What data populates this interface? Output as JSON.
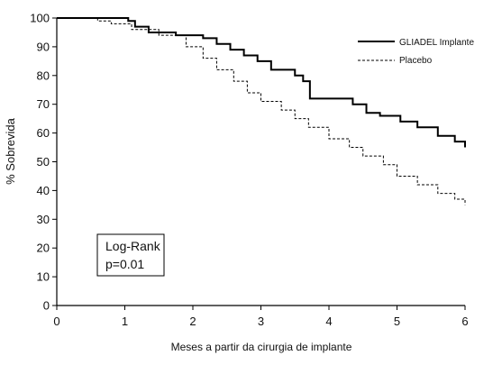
{
  "chart_data": {
    "type": "line",
    "ylabel": "% Sobrevida",
    "xlabel": "Meses a partir da cirurgia de implante",
    "xlim": [
      0,
      6
    ],
    "ylim": [
      0,
      100
    ],
    "xticks": [
      0,
      1,
      2,
      3,
      4,
      5,
      6
    ],
    "yticks": [
      0,
      10,
      20,
      30,
      40,
      50,
      60,
      70,
      80,
      90,
      100
    ],
    "grid": false,
    "legend_position": "top-right",
    "annotation": [
      "Log-Rank",
      "p=0.01"
    ],
    "series": [
      {
        "name": "GLIADEL Implante",
        "style": "solid",
        "color": "#000000",
        "x": [
          0,
          1.05,
          1.15,
          1.35,
          1.75,
          2.15,
          2.35,
          2.55,
          2.75,
          2.95,
          3.15,
          3.5,
          3.62,
          3.72,
          4.35,
          4.55,
          4.75,
          5.05,
          5.3,
          5.6,
          5.85,
          6.0
        ],
        "y": [
          100,
          99,
          97,
          95,
          94,
          93,
          91,
          89,
          87,
          85,
          82,
          80,
          78,
          72,
          70,
          67,
          66,
          64,
          62,
          59,
          57,
          55
        ]
      },
      {
        "name": "Placebo",
        "style": "dashed",
        "color": "#000000",
        "x": [
          0,
          0.6,
          0.8,
          1.1,
          1.5,
          1.9,
          2.15,
          2.35,
          2.6,
          2.8,
          3.0,
          3.3,
          3.5,
          3.7,
          4.0,
          4.3,
          4.5,
          4.8,
          5.0,
          5.3,
          5.6,
          5.85,
          6.0
        ],
        "y": [
          100,
          99,
          98,
          96,
          94,
          90,
          86,
          82,
          78,
          74,
          71,
          68,
          65,
          62,
          58,
          55,
          52,
          49,
          45,
          42,
          39,
          37,
          35
        ]
      }
    ]
  }
}
